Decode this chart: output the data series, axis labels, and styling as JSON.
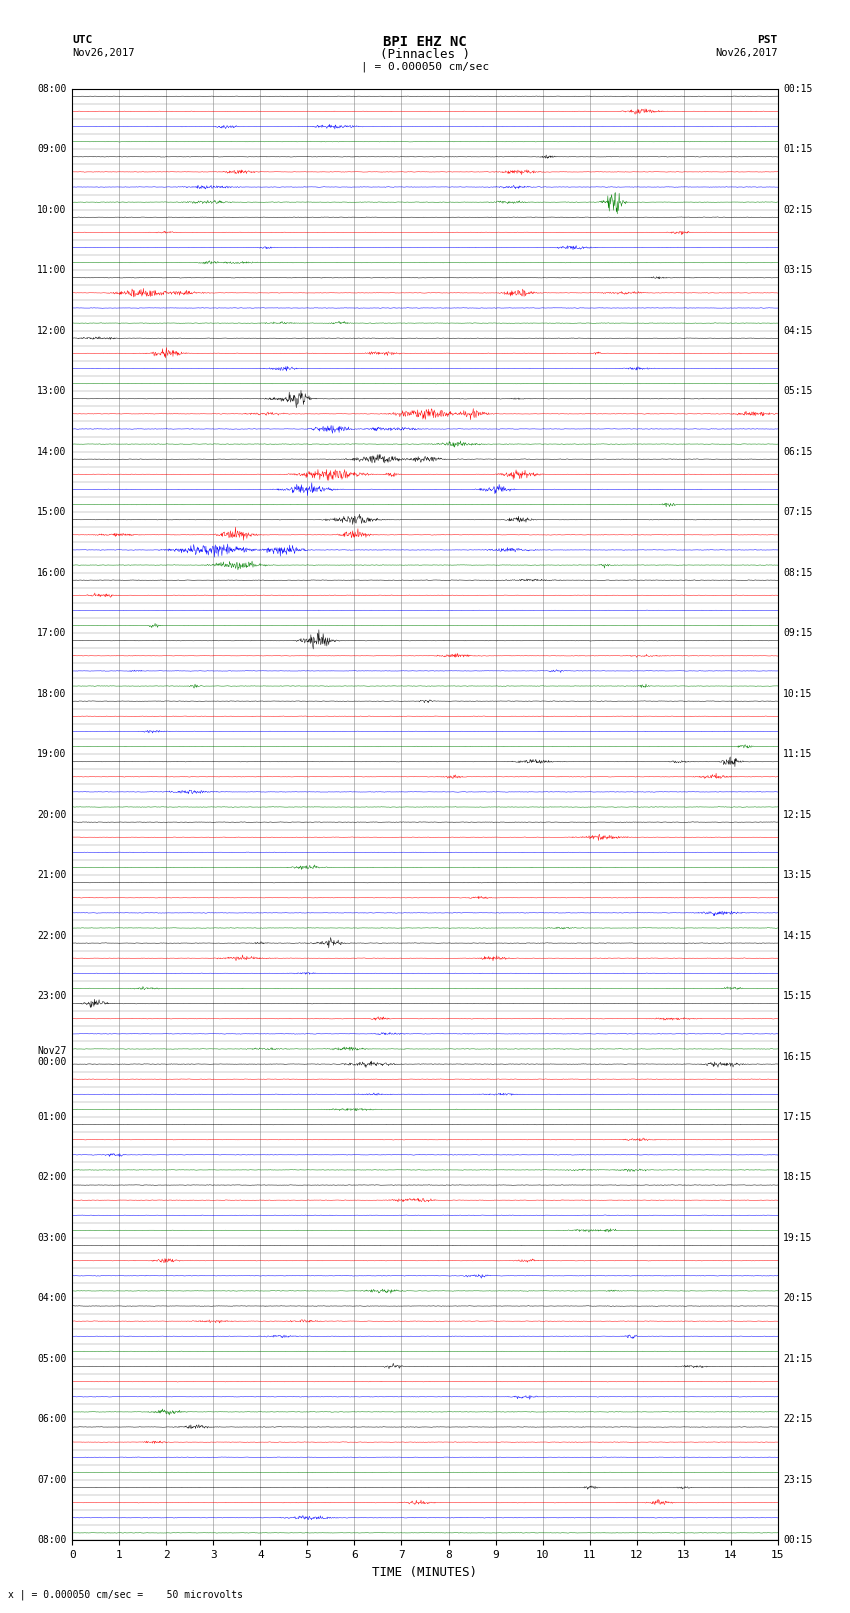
{
  "title_line1": "BPI EHZ NC",
  "title_line2": "(Pinnacles )",
  "title_line3": "| = 0.000050 cm/sec",
  "left_label_top": "UTC",
  "left_label_date": "Nov26,2017",
  "right_label_top": "PST",
  "right_label_date": "Nov26,2017",
  "xlabel": "TIME (MINUTES)",
  "footer": "x | = 0.000050 cm/sec =    50 microvolts",
  "x_min": 0,
  "x_max": 15,
  "x_ticks": [
    0,
    1,
    2,
    3,
    4,
    5,
    6,
    7,
    8,
    9,
    10,
    11,
    12,
    13,
    14,
    15
  ],
  "background_color": "#ffffff",
  "grid_color": "#888888",
  "noise_amplitude": 0.012,
  "utc_labels": [
    "08:00",
    "09:00",
    "10:00",
    "11:00",
    "12:00",
    "13:00",
    "14:00",
    "15:00",
    "16:00",
    "17:00",
    "18:00",
    "19:00",
    "20:00",
    "21:00",
    "22:00",
    "23:00",
    "Nov27\n00:00",
    "01:00",
    "02:00",
    "03:00",
    "04:00",
    "05:00",
    "06:00",
    "07:00",
    "08:00"
  ],
  "pst_labels": [
    "00:15",
    "01:15",
    "02:15",
    "03:15",
    "04:15",
    "05:15",
    "06:15",
    "07:15",
    "08:15",
    "09:15",
    "10:15",
    "11:15",
    "12:15",
    "13:15",
    "14:15",
    "15:15",
    "16:15",
    "17:15",
    "18:15",
    "19:15",
    "20:15",
    "21:15",
    "22:15",
    "23:15",
    "00:15"
  ],
  "num_rows": 96,
  "colors_cycle": [
    "black",
    "red",
    "blue",
    "green"
  ]
}
